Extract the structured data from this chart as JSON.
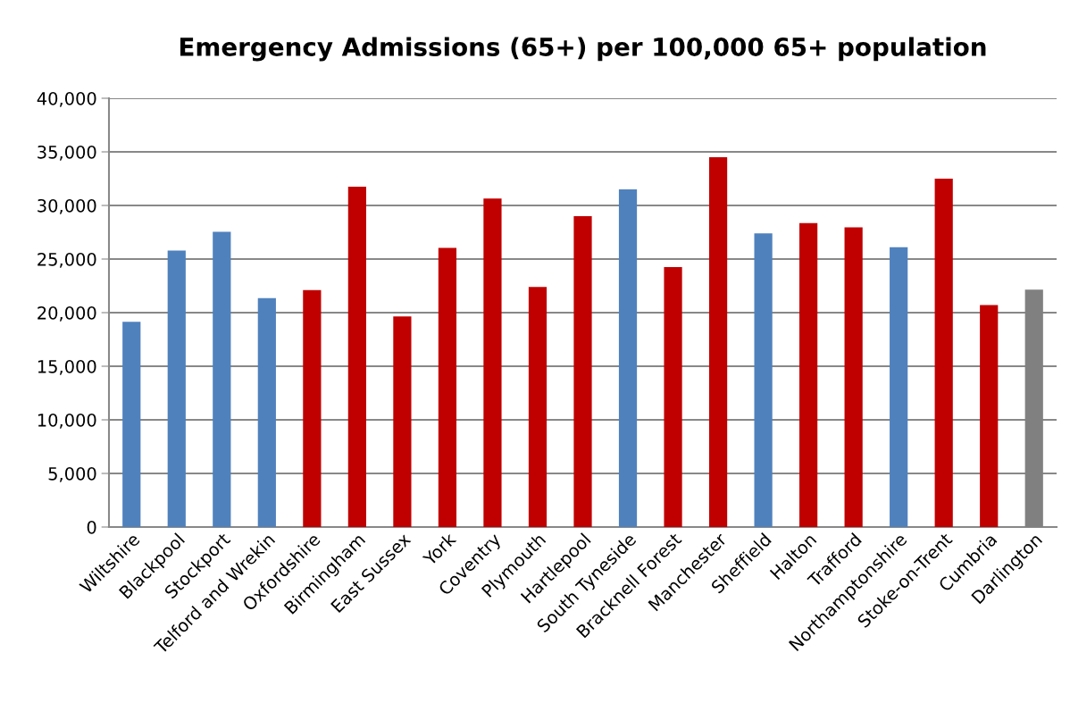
{
  "chart_data": {
    "type": "bar",
    "title": "Emergency Admissions (65+) per 100,000 65+ population",
    "categories": [
      "Wiltshire",
      "Blackpool",
      "Stockport",
      "Telford and Wrekin",
      "Oxfordshire",
      "Birmingham",
      "East Sussex",
      "York",
      "Coventry",
      "Plymouth",
      "Hartlepool",
      "South Tyneside",
      "Bracknell Forest",
      "Manchester",
      "Sheffield",
      "Halton",
      "Trafford",
      "Northamptonshire",
      "Stoke-on-Trent",
      "Cumbria",
      "Darlington"
    ],
    "values": [
      19150,
      25800,
      27550,
      21350,
      22100,
      31750,
      19650,
      26050,
      30650,
      22400,
      29000,
      31500,
      24250,
      34500,
      27400,
      28350,
      27950,
      26100,
      32500,
      20700,
      22150
    ],
    "colors": [
      "#4f81bd",
      "#4f81bd",
      "#4f81bd",
      "#4f81bd",
      "#c00000",
      "#c00000",
      "#c00000",
      "#c00000",
      "#c00000",
      "#c00000",
      "#c00000",
      "#4f81bd",
      "#c00000",
      "#c00000",
      "#4f81bd",
      "#c00000",
      "#c00000",
      "#4f81bd",
      "#c00000",
      "#c00000",
      "#808080"
    ],
    "ylim": [
      0,
      40000
    ],
    "yticks": [
      {
        "value": 0,
        "label": "0"
      },
      {
        "value": 5000,
        "label": "5,000"
      },
      {
        "value": 10000,
        "label": "10,000"
      },
      {
        "value": 15000,
        "label": "15,000"
      },
      {
        "value": 20000,
        "label": "20,000"
      },
      {
        "value": 25000,
        "label": "25,000"
      },
      {
        "value": 30000,
        "label": "30,000"
      },
      {
        "value": 35000,
        "label": "35,000"
      },
      {
        "value": 40000,
        "label": "40,000"
      }
    ],
    "grid": "y"
  }
}
